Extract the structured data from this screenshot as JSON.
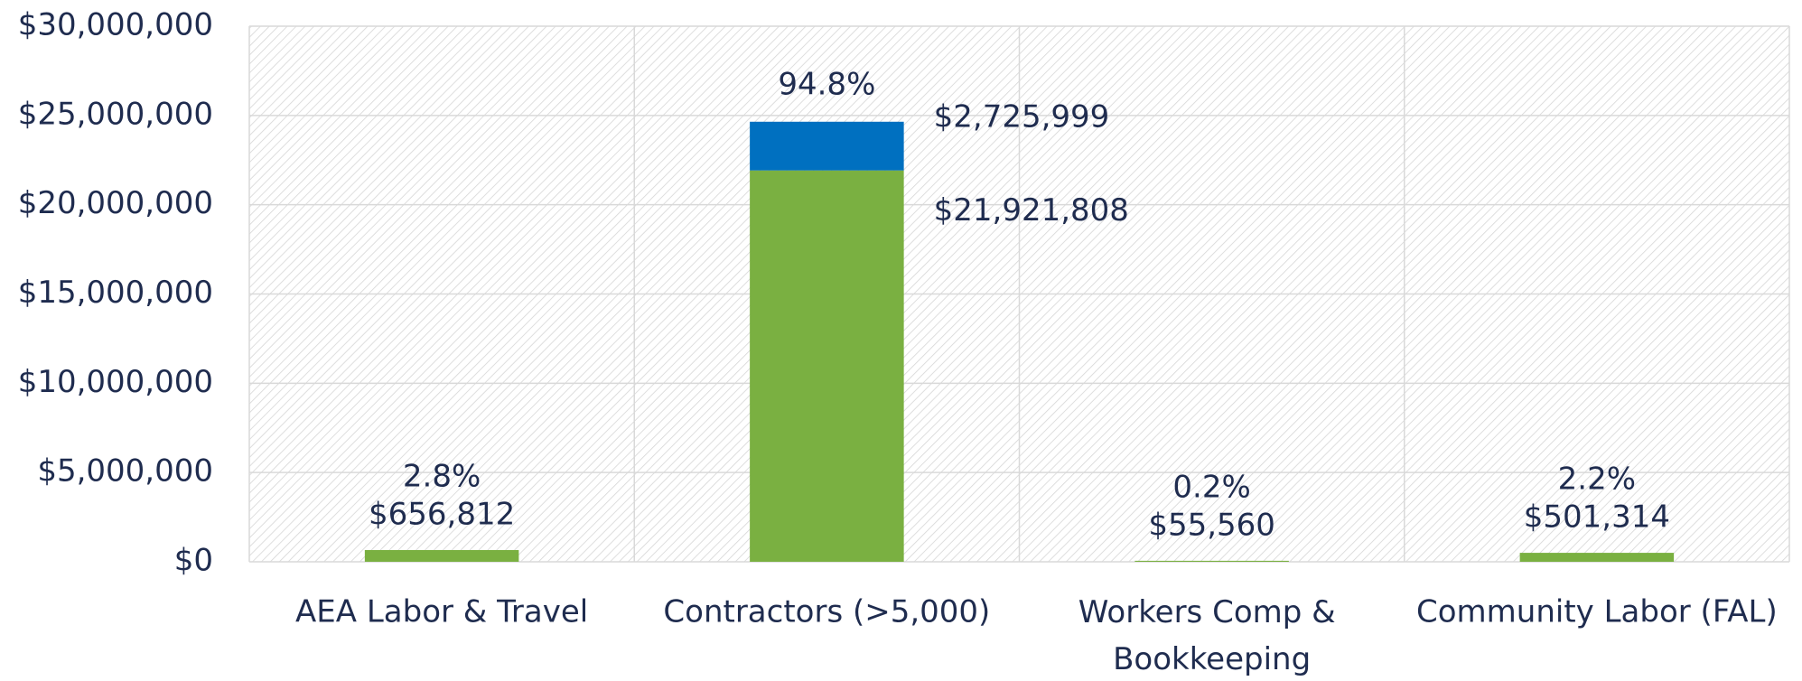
{
  "chart_data": {
    "type": "stacked_bar",
    "categories": [
      "AEA Labor & Travel",
      "Contractors (>5,000)",
      "Workers Comp & Bookkeeping",
      "Community Labor (FAL)"
    ],
    "series": [
      {
        "color": "#7ab041",
        "values": [
          656812,
          21921808,
          55560,
          501314
        ],
        "value_labels": [
          "$656,812",
          "$21,921,808",
          "$55,560",
          "$501,314"
        ]
      },
      {
        "color": "#0070c0",
        "values": [
          null,
          2725999,
          null,
          null
        ],
        "value_labels": [
          null,
          "$2,725,999",
          null,
          null
        ]
      }
    ],
    "share_labels": [
      "2.8%",
      "94.8%",
      "0.2%",
      "2.2%"
    ],
    "ylim": [
      0,
      30000000
    ],
    "yticks": [
      {
        "value": 0,
        "label": "$0"
      },
      {
        "value": 5000000,
        "label": "$5,000,000"
      },
      {
        "value": 10000000,
        "label": "$10,000,000"
      },
      {
        "value": 15000000,
        "label": "$15,000,000"
      },
      {
        "value": 20000000,
        "label": "$20,000,000"
      },
      {
        "value": 25000000,
        "label": "$25,000,000"
      },
      {
        "value": 30000000,
        "label": "$30,000,000"
      }
    ],
    "grid": true
  }
}
